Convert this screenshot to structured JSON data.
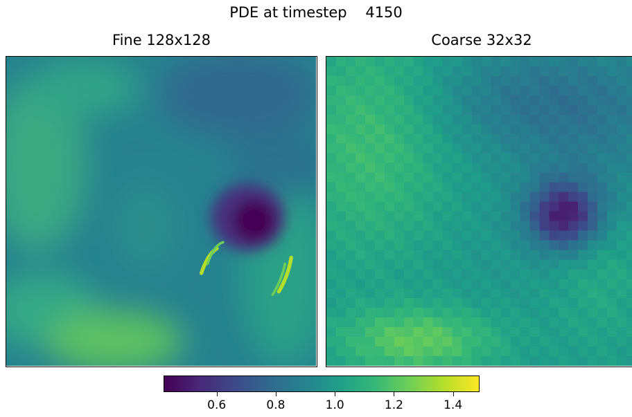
{
  "chart_data": [
    {
      "type": "heatmap",
      "title": "Fine 128x128",
      "grid": "128x128",
      "colormap": "viridis",
      "vmin": 0.42,
      "vmax": 1.49
    },
    {
      "type": "heatmap",
      "title": "Coarse 32x32",
      "grid": "32x32",
      "colormap": "viridis",
      "vmin": 0.42,
      "vmax": 1.49
    }
  ],
  "suptitle": "PDE at timestep    4150",
  "colorbar": {
    "ticks": [
      0.6,
      0.8,
      1.0,
      1.2,
      1.4
    ],
    "tick_labels": [
      "0.6",
      "0.8",
      "1.0",
      "1.2",
      "1.4"
    ],
    "min": 0.42,
    "max": 1.49
  },
  "colors": {
    "viridis": [
      "#440154",
      "#482878",
      "#3e4989",
      "#31688e",
      "#26828e",
      "#1f9e89",
      "#35b779",
      "#6ece58",
      "#b5de2b",
      "#fde725"
    ]
  }
}
